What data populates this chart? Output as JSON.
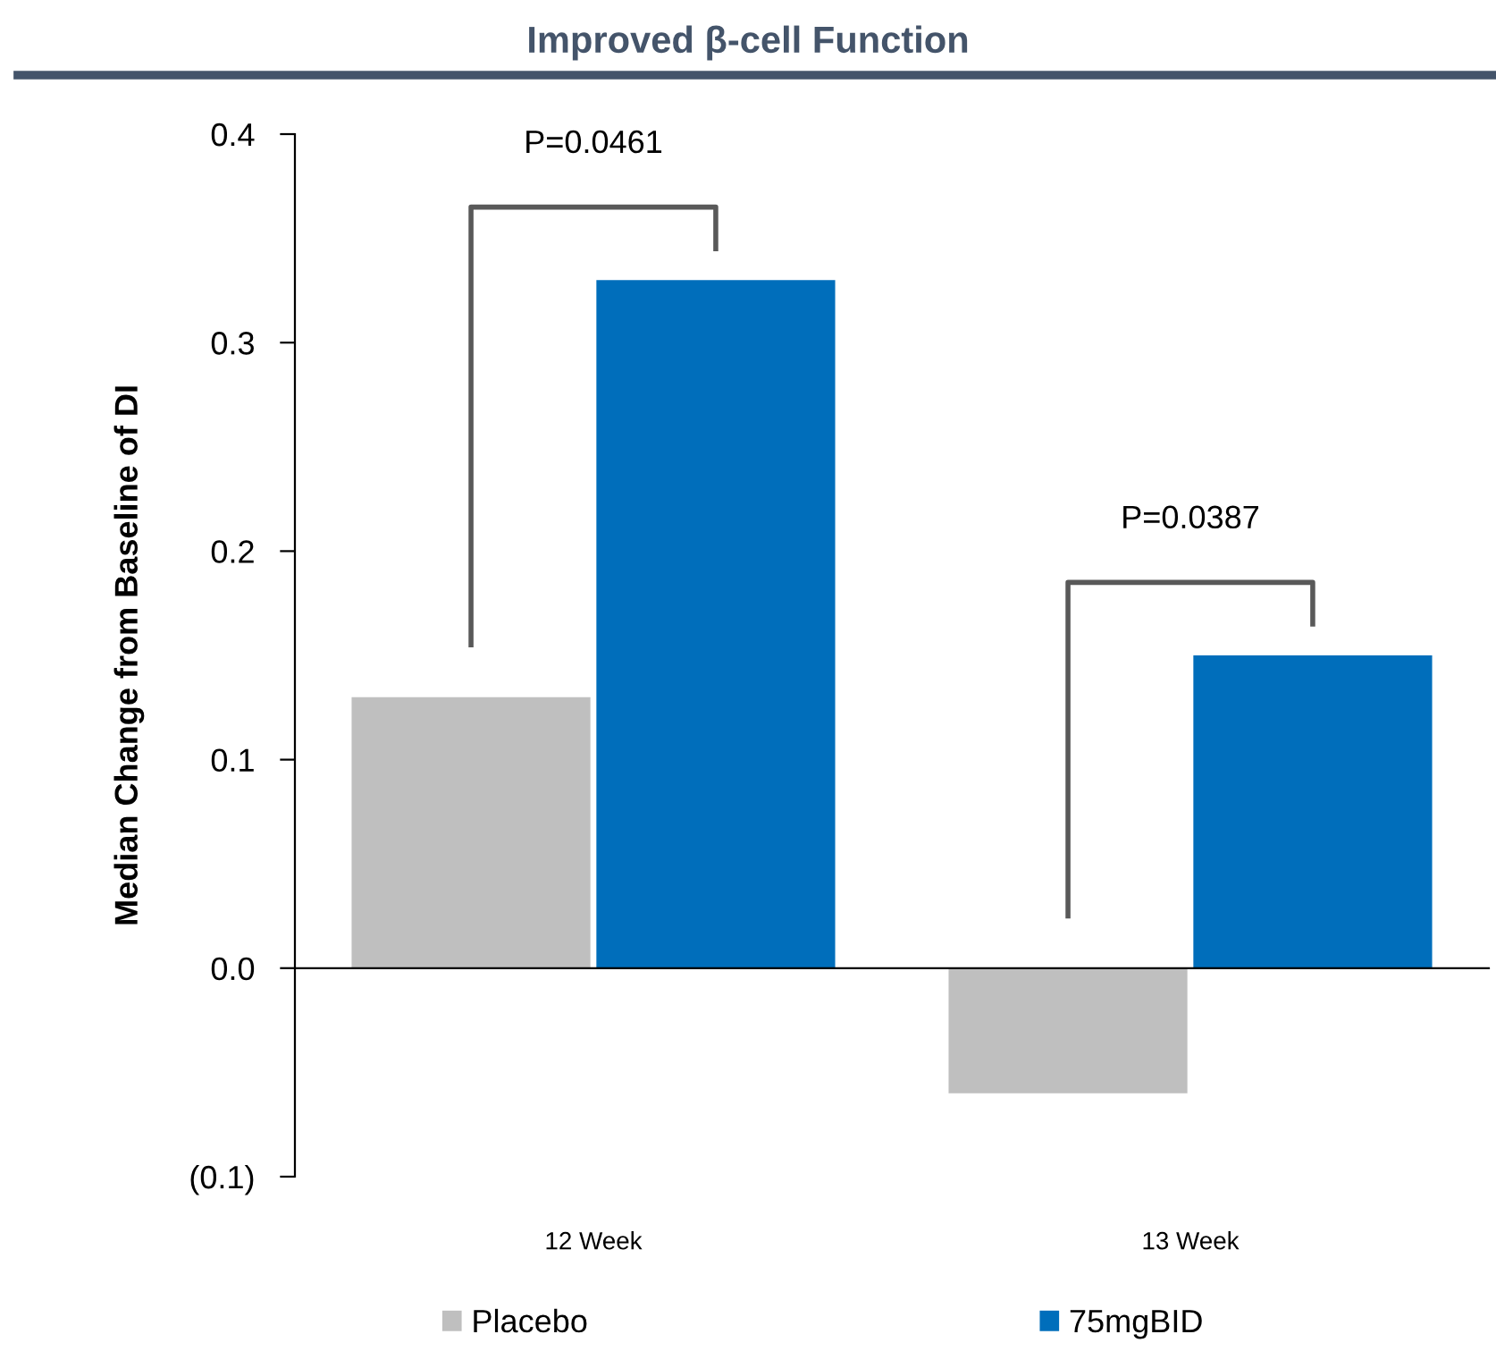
{
  "chart_data": {
    "type": "bar",
    "title": "Improved β-cell Function",
    "ylabel": "Median Change from Baseline of DI",
    "categories": [
      "12 Week",
      "13 Week"
    ],
    "series": [
      {
        "name": "Placebo",
        "color": "#bfbfbf",
        "values": [
          0.13,
          -0.06
        ]
      },
      {
        "name": "75mgBID",
        "color": "#006ebb",
        "values": [
          0.33,
          0.15
        ]
      }
    ],
    "ylim": [
      -0.1,
      0.4
    ],
    "yticks": [
      {
        "value": -0.1,
        "label": "(0.1)"
      },
      {
        "value": 0.0,
        "label": "0.0"
      },
      0.1,
      0.2,
      0.3,
      0.4
    ],
    "annotations": [
      "P=0.0461",
      "P=0.0387"
    ],
    "legend": "bottom"
  }
}
